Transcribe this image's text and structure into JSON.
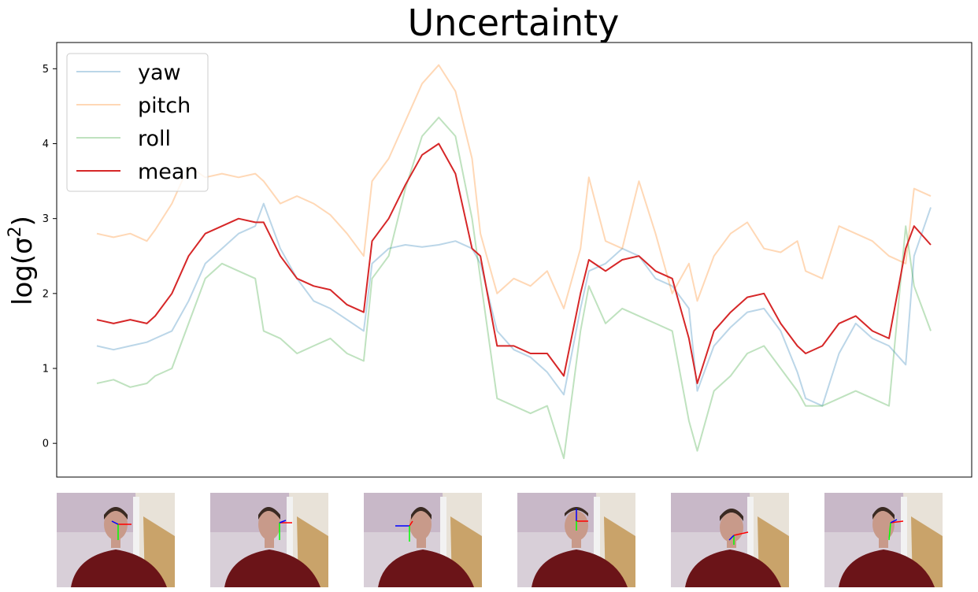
{
  "chart_data": {
    "type": "line",
    "title": "Uncertainty",
    "ylabel_base": "log(σ",
    "ylabel_sup": "2",
    "ylabel_close": ")",
    "ylim": [
      -0.45,
      5.35
    ],
    "xlim": [
      0,
      1
    ],
    "yticks": [
      0,
      1,
      2,
      3,
      4,
      5
    ],
    "ytick_labels": [
      "0",
      "1",
      "2",
      "3",
      "4",
      "5"
    ],
    "xticks_visible": false,
    "grid": false,
    "legend_position": "top-left",
    "series": [
      {
        "name": "yaw",
        "color": "#1f77b4",
        "opacity": 0.3,
        "x": [
          0.0,
          0.02,
          0.04,
          0.06,
          0.07,
          0.09,
          0.11,
          0.13,
          0.15,
          0.17,
          0.19,
          0.2,
          0.22,
          0.24,
          0.26,
          0.28,
          0.3,
          0.32,
          0.33,
          0.35,
          0.37,
          0.39,
          0.41,
          0.43,
          0.45,
          0.46,
          0.48,
          0.5,
          0.52,
          0.54,
          0.56,
          0.58,
          0.59,
          0.61,
          0.63,
          0.65,
          0.67,
          0.69,
          0.71,
          0.72,
          0.74,
          0.76,
          0.78,
          0.8,
          0.82,
          0.84,
          0.85,
          0.87,
          0.89,
          0.91,
          0.93,
          0.95,
          0.97,
          0.98,
          1.0
        ],
        "y": [
          1.3,
          1.25,
          1.3,
          1.35,
          1.4,
          1.5,
          1.9,
          2.4,
          2.6,
          2.8,
          2.9,
          3.2,
          2.6,
          2.2,
          1.9,
          1.8,
          1.65,
          1.5,
          2.4,
          2.6,
          2.65,
          2.62,
          2.65,
          2.7,
          2.6,
          2.4,
          1.5,
          1.25,
          1.15,
          0.95,
          0.65,
          1.8,
          2.3,
          2.4,
          2.6,
          2.5,
          2.2,
          2.1,
          1.8,
          0.7,
          1.3,
          1.55,
          1.75,
          1.8,
          1.5,
          0.95,
          0.6,
          0.5,
          1.2,
          1.6,
          1.4,
          1.3,
          1.05,
          2.5,
          3.15
        ]
      },
      {
        "name": "pitch",
        "color": "#ff7f0e",
        "opacity": 0.3,
        "x": [
          0.0,
          0.02,
          0.04,
          0.06,
          0.07,
          0.09,
          0.11,
          0.13,
          0.15,
          0.17,
          0.19,
          0.2,
          0.22,
          0.24,
          0.26,
          0.28,
          0.3,
          0.32,
          0.33,
          0.35,
          0.37,
          0.39,
          0.41,
          0.43,
          0.45,
          0.46,
          0.48,
          0.5,
          0.52,
          0.54,
          0.56,
          0.58,
          0.59,
          0.61,
          0.63,
          0.65,
          0.67,
          0.69,
          0.71,
          0.72,
          0.74,
          0.76,
          0.78,
          0.8,
          0.82,
          0.84,
          0.85,
          0.87,
          0.89,
          0.91,
          0.93,
          0.95,
          0.97,
          0.98,
          1.0
        ],
        "y": [
          2.8,
          2.75,
          2.8,
          2.7,
          2.85,
          3.2,
          3.7,
          3.55,
          3.6,
          3.55,
          3.6,
          3.5,
          3.2,
          3.3,
          3.2,
          3.05,
          2.8,
          2.5,
          3.5,
          3.8,
          4.3,
          4.8,
          5.05,
          4.7,
          3.8,
          2.8,
          2.0,
          2.2,
          2.1,
          2.3,
          1.8,
          2.6,
          3.55,
          2.7,
          2.6,
          3.5,
          2.8,
          2.0,
          2.4,
          1.9,
          2.5,
          2.8,
          2.95,
          2.6,
          2.55,
          2.7,
          2.3,
          2.2,
          2.9,
          2.8,
          2.7,
          2.5,
          2.4,
          3.4,
          3.3
        ]
      },
      {
        "name": "roll",
        "color": "#2ca02c",
        "opacity": 0.3,
        "x": [
          0.0,
          0.02,
          0.04,
          0.06,
          0.07,
          0.09,
          0.11,
          0.13,
          0.15,
          0.17,
          0.19,
          0.2,
          0.22,
          0.24,
          0.26,
          0.28,
          0.3,
          0.32,
          0.33,
          0.35,
          0.37,
          0.39,
          0.41,
          0.43,
          0.45,
          0.46,
          0.48,
          0.5,
          0.52,
          0.54,
          0.56,
          0.58,
          0.59,
          0.61,
          0.63,
          0.65,
          0.67,
          0.69,
          0.71,
          0.72,
          0.74,
          0.76,
          0.78,
          0.8,
          0.82,
          0.84,
          0.85,
          0.87,
          0.89,
          0.91,
          0.93,
          0.95,
          0.97,
          0.98,
          1.0
        ],
        "y": [
          0.8,
          0.85,
          0.75,
          0.8,
          0.9,
          1.0,
          1.6,
          2.2,
          2.4,
          2.3,
          2.2,
          1.5,
          1.4,
          1.2,
          1.3,
          1.4,
          1.2,
          1.1,
          2.2,
          2.5,
          3.4,
          4.1,
          4.35,
          4.1,
          3.0,
          2.2,
          0.6,
          0.5,
          0.4,
          0.5,
          -0.2,
          1.5,
          2.1,
          1.6,
          1.8,
          1.7,
          1.6,
          1.5,
          0.3,
          -0.1,
          0.7,
          0.9,
          1.2,
          1.3,
          1.0,
          0.7,
          0.5,
          0.5,
          0.6,
          0.7,
          0.6,
          0.5,
          2.9,
          2.1,
          1.5
        ]
      },
      {
        "name": "mean",
        "color": "#d62728",
        "opacity": 1.0,
        "x": [
          0.0,
          0.02,
          0.04,
          0.06,
          0.07,
          0.09,
          0.11,
          0.13,
          0.15,
          0.17,
          0.19,
          0.2,
          0.22,
          0.24,
          0.26,
          0.28,
          0.3,
          0.32,
          0.33,
          0.35,
          0.37,
          0.39,
          0.41,
          0.43,
          0.45,
          0.46,
          0.48,
          0.5,
          0.52,
          0.54,
          0.56,
          0.58,
          0.59,
          0.61,
          0.63,
          0.65,
          0.67,
          0.69,
          0.71,
          0.72,
          0.74,
          0.76,
          0.78,
          0.8,
          0.82,
          0.84,
          0.85,
          0.87,
          0.89,
          0.91,
          0.93,
          0.95,
          0.97,
          0.98,
          1.0
        ],
        "y": [
          1.65,
          1.6,
          1.65,
          1.6,
          1.7,
          2.0,
          2.5,
          2.8,
          2.9,
          3.0,
          2.95,
          2.95,
          2.5,
          2.2,
          2.1,
          2.05,
          1.85,
          1.75,
          2.7,
          3.0,
          3.45,
          3.85,
          4.0,
          3.6,
          2.6,
          2.5,
          1.3,
          1.3,
          1.2,
          1.2,
          0.9,
          2.0,
          2.45,
          2.3,
          2.45,
          2.5,
          2.3,
          2.2,
          1.4,
          0.8,
          1.5,
          1.75,
          1.95,
          2.0,
          1.6,
          1.3,
          1.2,
          1.3,
          1.6,
          1.7,
          1.5,
          1.4,
          2.6,
          2.9,
          2.65
        ]
      }
    ]
  },
  "thumbnails": [
    {
      "name": "frame-1"
    },
    {
      "name": "frame-2"
    },
    {
      "name": "frame-3"
    },
    {
      "name": "frame-4"
    },
    {
      "name": "frame-5"
    },
    {
      "name": "frame-6"
    }
  ]
}
